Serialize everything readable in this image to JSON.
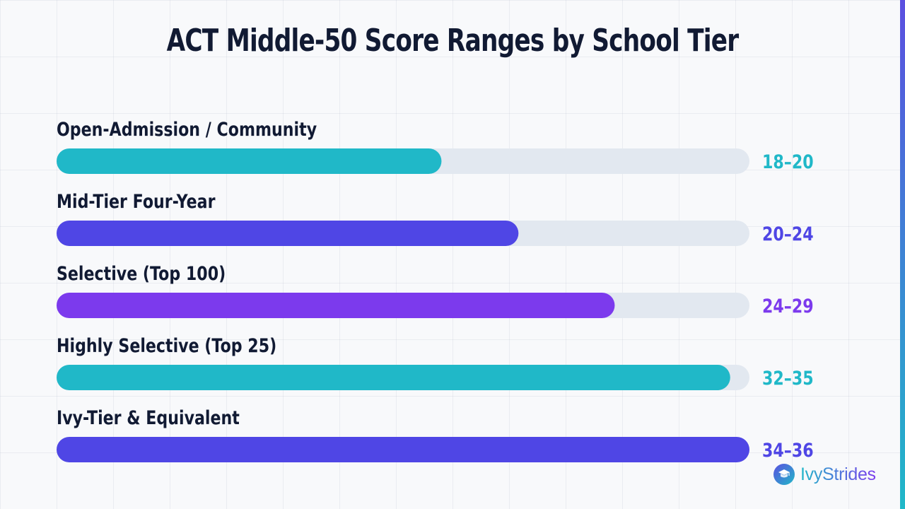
{
  "title": "ACT Middle-50 Score Ranges by School Tier",
  "colors": {
    "teal": "#20b8c8",
    "indigo": "#4f46e5",
    "violet": "#7c3aed",
    "track": "#e2e8f0",
    "text": "#111a33",
    "accent_gradient": [
      "#5b4fe0",
      "#20b8c8"
    ]
  },
  "brand": {
    "name": "IvyStrides",
    "icon": "graduation-cap-icon"
  },
  "chart_data": {
    "type": "bar",
    "orientation": "horizontal",
    "title": "ACT Middle-50 Score Ranges by School Tier",
    "categories": [
      "Open-Admission / Community",
      "Mid-Tier Four-Year",
      "Selective (Top 100)",
      "Highly Selective (Top 25)",
      "Ivy-Tier & Equivalent"
    ],
    "value_labels": [
      "18–20",
      "20–24",
      "24–29",
      "32–35",
      "34–36"
    ],
    "values": [
      20,
      24,
      29,
      35,
      36
    ],
    "xlim": [
      0,
      36
    ],
    "bar_colors": [
      "#20b8c8",
      "#4f46e5",
      "#7c3aed",
      "#20b8c8",
      "#4f46e5"
    ],
    "grid": true,
    "legend": false
  }
}
